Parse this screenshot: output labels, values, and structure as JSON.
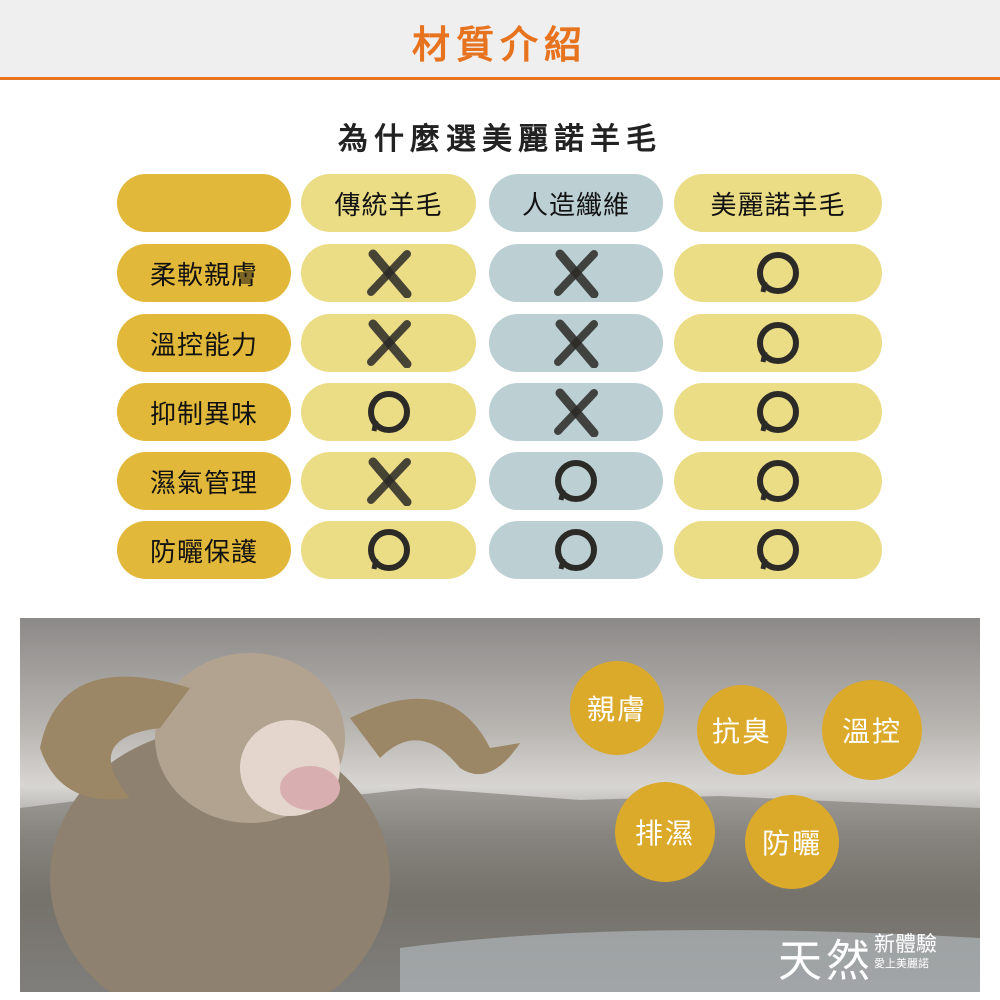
{
  "header": {
    "title": "材質介紹"
  },
  "subtitle": "為什麼選美麗諾羊毛",
  "table": {
    "columns": [
      "",
      "傳統羊毛",
      "人造纖維",
      "美麗諾羊毛"
    ],
    "rows": [
      {
        "label": "柔軟親膚",
        "marks": [
          "cross",
          "cross",
          "circle"
        ]
      },
      {
        "label": "溫控能力",
        "marks": [
          "cross",
          "cross",
          "circle"
        ]
      },
      {
        "label": "抑制異味",
        "marks": [
          "circle",
          "cross",
          "circle"
        ]
      },
      {
        "label": "濕氣管理",
        "marks": [
          "cross",
          "circle",
          "circle"
        ]
      },
      {
        "label": "防曬保護",
        "marks": [
          "circle",
          "circle",
          "circle"
        ]
      }
    ]
  },
  "features": [
    "親膚",
    "抗臭",
    "溫控",
    "排濕",
    "防曬"
  ],
  "tagline": {
    "main": "天然",
    "sub": "新體驗",
    "small": "愛上美麗諾"
  },
  "colors": {
    "accent": "#e8731f",
    "gold": "#e2b83a",
    "light_gold": "#ebdc86",
    "blue_grey": "#bccfd3",
    "bubble": "#dcaa2a"
  }
}
